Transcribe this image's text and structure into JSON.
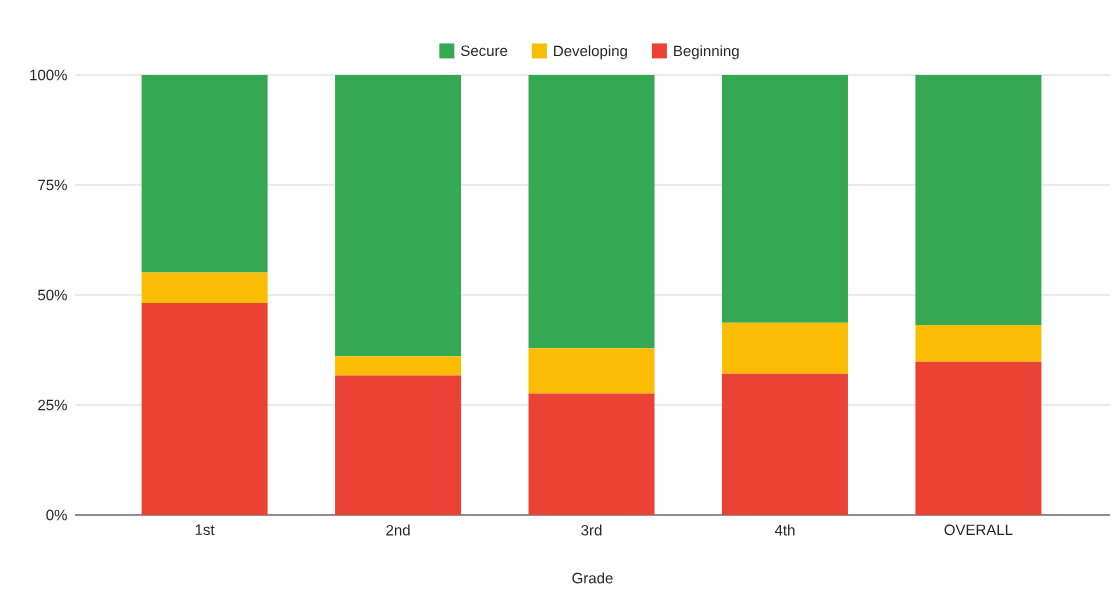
{
  "chart_data": {
    "type": "bar",
    "stacked": true,
    "xlabel": "Grade",
    "categories": [
      "1st",
      "2nd",
      "3rd",
      "4th",
      "OVERALL"
    ],
    "series": [
      {
        "name": "Beginning",
        "color": "#ea4335",
        "values": [
          48.2,
          31.7,
          27.6,
          32.1,
          34.8
        ]
      },
      {
        "name": "Developing",
        "color": "#fbbc04",
        "values": [
          6.9,
          4.4,
          10.3,
          11.6,
          8.4
        ]
      },
      {
        "name": "Secure",
        "color": "#34a853",
        "values": [
          44.9,
          63.9,
          62.1,
          56.3,
          56.8
        ]
      }
    ],
    "ylim": [
      0,
      100
    ],
    "yticks": [
      {
        "value": 0,
        "label": "0%"
      },
      {
        "value": 25,
        "label": "25%"
      },
      {
        "value": 50,
        "label": "50%"
      },
      {
        "value": 75,
        "label": "75%"
      },
      {
        "value": 100,
        "label": "100%"
      }
    ],
    "grid": "y",
    "legend": "top"
  }
}
